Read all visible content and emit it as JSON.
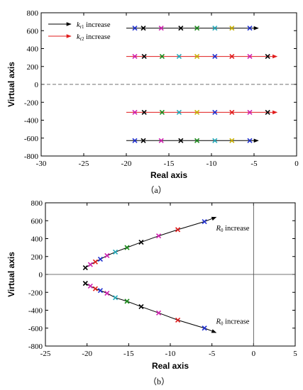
{
  "colors": {
    "black": "#000000",
    "blue": "#1f2fcf",
    "magenta": "#d020b0",
    "green": "#1a8a1a",
    "cyan": "#22a8b8",
    "yellow": "#c8b000",
    "red": "#e01c1c"
  },
  "chart_data": [
    {
      "type": "scatter",
      "panel": "a",
      "caption": "（a）",
      "xlabel": "Real axis",
      "ylabel": "Virtual axis",
      "xlim": [
        -30,
        0
      ],
      "ylim": [
        -800,
        800
      ],
      "xticks": [
        "-30",
        "-25",
        "-20",
        "-15",
        "-10",
        "-5",
        "0"
      ],
      "yticks": [
        "800",
        "600",
        "400",
        "200",
        "0",
        "-200",
        "-400",
        "-600",
        "-800"
      ],
      "legend_position": "top-left",
      "legend": [
        {
          "label": "kr1 increase",
          "color": "#000000"
        },
        {
          "label": "kr2 increase",
          "color": "#e01c1c"
        }
      ],
      "series": [
        {
          "color": "#000000",
          "arrow": [
            [
              -20,
              628
            ],
            [
              -4.5,
              628
            ]
          ],
          "points": [
            {
              "x": -19,
              "y": 628,
              "c": "blue"
            },
            {
              "x": -18,
              "y": 628,
              "c": "black"
            },
            {
              "x": -15.9,
              "y": 628,
              "c": "magenta"
            },
            {
              "x": -13.6,
              "y": 628,
              "c": "black"
            },
            {
              "x": -11.7,
              "y": 628,
              "c": "green"
            },
            {
              "x": -9.6,
              "y": 628,
              "c": "cyan"
            },
            {
              "x": -7.6,
              "y": 628,
              "c": "yellow"
            },
            {
              "x": -5.5,
              "y": 628,
              "c": "blue"
            }
          ]
        },
        {
          "color": "#e01c1c",
          "arrow": [
            [
              -20,
              312
            ],
            [
              -2.3,
              312
            ]
          ],
          "points": [
            {
              "x": -19,
              "y": 312,
              "c": "magenta"
            },
            {
              "x": -17.9,
              "y": 312,
              "c": "black"
            },
            {
              "x": -15.8,
              "y": 312,
              "c": "green"
            },
            {
              "x": -13.8,
              "y": 312,
              "c": "cyan"
            },
            {
              "x": -11.7,
              "y": 312,
              "c": "yellow"
            },
            {
              "x": -9.6,
              "y": 312,
              "c": "blue"
            },
            {
              "x": -7.6,
              "y": 312,
              "c": "red"
            },
            {
              "x": -5.5,
              "y": 312,
              "c": "magenta"
            },
            {
              "x": -3.4,
              "y": 312,
              "c": "black"
            }
          ]
        },
        {
          "color": "#e01c1c",
          "arrow": [
            [
              -20,
              -312
            ],
            [
              -2.3,
              -312
            ]
          ],
          "points": [
            {
              "x": -19,
              "y": -312,
              "c": "magenta"
            },
            {
              "x": -17.9,
              "y": -312,
              "c": "black"
            },
            {
              "x": -15.8,
              "y": -312,
              "c": "green"
            },
            {
              "x": -13.8,
              "y": -312,
              "c": "cyan"
            },
            {
              "x": -11.7,
              "y": -312,
              "c": "yellow"
            },
            {
              "x": -9.6,
              "y": -312,
              "c": "blue"
            },
            {
              "x": -7.6,
              "y": -312,
              "c": "red"
            },
            {
              "x": -5.5,
              "y": -312,
              "c": "magenta"
            },
            {
              "x": -3.4,
              "y": -312,
              "c": "black"
            }
          ]
        },
        {
          "color": "#000000",
          "arrow": [
            [
              -20,
              -628
            ],
            [
              -4.5,
              -628
            ]
          ],
          "points": [
            {
              "x": -19,
              "y": -628,
              "c": "blue"
            },
            {
              "x": -18,
              "y": -628,
              "c": "black"
            },
            {
              "x": -15.9,
              "y": -628,
              "c": "magenta"
            },
            {
              "x": -13.6,
              "y": -628,
              "c": "black"
            },
            {
              "x": -11.7,
              "y": -628,
              "c": "green"
            },
            {
              "x": -9.6,
              "y": -628,
              "c": "cyan"
            },
            {
              "x": -7.6,
              "y": -628,
              "c": "yellow"
            },
            {
              "x": -5.5,
              "y": -628,
              "c": "blue"
            }
          ]
        }
      ]
    },
    {
      "type": "line",
      "panel": "b",
      "caption": "（b）",
      "xlabel": "Real axis",
      "ylabel": "Virtual axis",
      "xlim": [
        -25,
        5
      ],
      "ylim": [
        -800,
        800
      ],
      "xticks": [
        "-25",
        "-20",
        "-15",
        "-10",
        "-5",
        "0",
        "5"
      ],
      "yticks": [
        "800",
        "600",
        "400",
        "200",
        "0",
        "-200",
        "-400",
        "-600",
        "-800"
      ],
      "annotations": [
        {
          "text": "R0 increase",
          "x": -4.5,
          "y": 490
        },
        {
          "text": "R0 increase",
          "x": -4.5,
          "y": -550
        }
      ],
      "series": [
        {
          "color": "#000000",
          "end": [
            -4.5,
            640
          ],
          "points": [
            {
              "x": -20.2,
              "y": 75,
              "c": "black"
            },
            {
              "x": -19.6,
              "y": 110,
              "c": "magenta"
            },
            {
              "x": -19.0,
              "y": 140,
              "c": "red"
            },
            {
              "x": -18.4,
              "y": 170,
              "c": "blue"
            },
            {
              "x": -17.6,
              "y": 210,
              "c": "magenta"
            },
            {
              "x": -16.6,
              "y": 250,
              "c": "cyan"
            },
            {
              "x": -15.2,
              "y": 300,
              "c": "green"
            },
            {
              "x": -13.5,
              "y": 360,
              "c": "black"
            },
            {
              "x": -11.4,
              "y": 430,
              "c": "magenta"
            },
            {
              "x": -9.1,
              "y": 500,
              "c": "red"
            },
            {
              "x": -5.9,
              "y": 590,
              "c": "blue"
            }
          ]
        },
        {
          "color": "#000000",
          "end": [
            -4.5,
            -650
          ],
          "points": [
            {
              "x": -20.2,
              "y": -100,
              "c": "black"
            },
            {
              "x": -19.6,
              "y": -130,
              "c": "magenta"
            },
            {
              "x": -19.0,
              "y": -160,
              "c": "red"
            },
            {
              "x": -18.4,
              "y": -180,
              "c": "blue"
            },
            {
              "x": -17.6,
              "y": -210,
              "c": "magenta"
            },
            {
              "x": -16.6,
              "y": -260,
              "c": "cyan"
            },
            {
              "x": -15.2,
              "y": -300,
              "c": "green"
            },
            {
              "x": -13.5,
              "y": -360,
              "c": "black"
            },
            {
              "x": -11.4,
              "y": -430,
              "c": "magenta"
            },
            {
              "x": -9.1,
              "y": -510,
              "c": "red"
            },
            {
              "x": -5.9,
              "y": -600,
              "c": "blue"
            }
          ]
        }
      ]
    }
  ]
}
